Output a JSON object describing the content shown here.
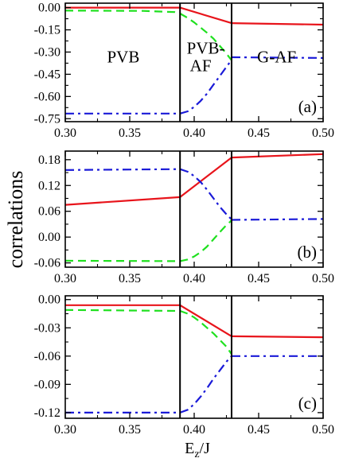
{
  "figure": {
    "ylabel": "correlations",
    "xlabel_main": "E",
    "xlabel_sub": "z",
    "xlabel_tail": "/J"
  },
  "colors": {
    "series_red": "#e8141b",
    "series_green": "#1fe01f",
    "series_blue": "#1a1ad8",
    "axis": "#000000"
  },
  "chart_data": [
    {
      "type": "line",
      "panel_label": "(a)",
      "xlim": [
        0.3,
        0.5
      ],
      "ylim": [
        -0.77,
        0.03
      ],
      "xticks": [
        0.3,
        0.35,
        0.4,
        0.45,
        0.5
      ],
      "xtick_labels": [
        "0.30",
        "0.35",
        "0.40",
        "0.45",
        "0.50"
      ],
      "yticks": [
        0.0,
        -0.15,
        -0.3,
        -0.45,
        -0.6,
        -0.75
      ],
      "ytick_labels": [
        "0.00",
        "-0.15",
        "-0.30",
        "-0.45",
        "-0.60",
        "-0.75"
      ],
      "vlines": [
        0.389,
        0.429
      ],
      "region_labels": [
        {
          "text": "PVB",
          "x": 0.345,
          "y": -0.37
        },
        {
          "text": "PVB-",
          "x": 0.409,
          "y": -0.31
        },
        {
          "text": "AF",
          "x": 0.405,
          "y": -0.43
        },
        {
          "text": "G-AF",
          "x": 0.464,
          "y": -0.37
        }
      ],
      "series": [
        {
          "color_key": "series_red",
          "style": "solid",
          "segments": [
            {
              "x": [
                0.3,
                0.389
              ],
              "y": [
                0.0,
                0.0
              ]
            },
            {
              "x": [
                0.389,
                0.429
              ],
              "y": [
                0.0,
                -0.105
              ]
            },
            {
              "x": [
                0.429,
                0.5
              ],
              "y": [
                -0.105,
                -0.115
              ]
            }
          ]
        },
        {
          "color_key": "series_green",
          "style": "dash",
          "segments": [
            {
              "x": [
                0.3,
                0.36,
                0.385,
                0.389
              ],
              "y": [
                -0.02,
                -0.022,
                -0.03,
                -0.04
              ]
            },
            {
              "x": [
                0.389,
                0.395,
                0.4,
                0.405,
                0.41,
                0.415,
                0.42,
                0.425,
                0.428,
                0.429
              ],
              "y": [
                -0.04,
                -0.07,
                -0.1,
                -0.135,
                -0.17,
                -0.21,
                -0.26,
                -0.31,
                -0.345,
                -0.355
              ]
            }
          ]
        },
        {
          "color_key": "series_blue",
          "style": "dashdot",
          "segments": [
            {
              "x": [
                0.3,
                0.389
              ],
              "y": [
                -0.715,
                -0.715
              ]
            },
            {
              "x": [
                0.389,
                0.395,
                0.4,
                0.405,
                0.41,
                0.415,
                0.42,
                0.425,
                0.428,
                0.429
              ],
              "y": [
                -0.715,
                -0.7,
                -0.67,
                -0.63,
                -0.58,
                -0.52,
                -0.46,
                -0.4,
                -0.365,
                -0.355
              ]
            },
            {
              "x": [
                0.429,
                0.5
              ],
              "y": [
                -0.335,
                -0.34
              ]
            }
          ]
        }
      ]
    },
    {
      "type": "line",
      "panel_label": "(b)",
      "xlim": [
        0.3,
        0.5
      ],
      "ylim": [
        -0.07,
        0.2
      ],
      "xticks": [
        0.3,
        0.35,
        0.4,
        0.45,
        0.5
      ],
      "xtick_labels": [
        "0.30",
        "0.35",
        "0.40",
        "0.45",
        "0.50"
      ],
      "yticks": [
        0.18,
        0.12,
        0.06,
        0.0,
        -0.06
      ],
      "ytick_labels": [
        "0.18",
        "0.12",
        "0.06",
        "0.00",
        "-0.06"
      ],
      "vlines": [
        0.389,
        0.429
      ],
      "series": [
        {
          "color_key": "series_red",
          "style": "solid",
          "segments": [
            {
              "x": [
                0.3,
                0.389
              ],
              "y": [
                0.075,
                0.093
              ]
            },
            {
              "x": [
                0.389,
                0.429
              ],
              "y": [
                0.093,
                0.185
              ]
            },
            {
              "x": [
                0.429,
                0.5
              ],
              "y": [
                0.185,
                0.193
              ]
            }
          ]
        },
        {
          "color_key": "series_green",
          "style": "dash",
          "segments": [
            {
              "x": [
                0.3,
                0.389
              ],
              "y": [
                -0.055,
                -0.056
              ]
            },
            {
              "x": [
                0.389,
                0.395,
                0.4,
                0.405,
                0.41,
                0.415,
                0.42,
                0.425,
                0.428,
                0.429
              ],
              "y": [
                -0.056,
                -0.052,
                -0.045,
                -0.035,
                -0.022,
                -0.005,
                0.012,
                0.028,
                0.036,
                0.04
              ]
            }
          ]
        },
        {
          "color_key": "series_blue",
          "style": "dashdot",
          "segments": [
            {
              "x": [
                0.3,
                0.389
              ],
              "y": [
                0.156,
                0.158
              ]
            },
            {
              "x": [
                0.389,
                0.395,
                0.4,
                0.405,
                0.41,
                0.415,
                0.42,
                0.425,
                0.428,
                0.429
              ],
              "y": [
                0.158,
                0.152,
                0.142,
                0.128,
                0.11,
                0.09,
                0.07,
                0.053,
                0.044,
                0.04
              ]
            },
            {
              "x": [
                0.429,
                0.5
              ],
              "y": [
                0.04,
                0.042
              ]
            }
          ]
        }
      ]
    },
    {
      "type": "line",
      "panel_label": "(c)",
      "xlim": [
        0.3,
        0.5
      ],
      "ylim": [
        -0.126,
        0.004
      ],
      "xticks": [
        0.3,
        0.35,
        0.4,
        0.45,
        0.5
      ],
      "xtick_labels": [
        "0.30",
        "0.35",
        "0.40",
        "0.45",
        "0.50"
      ],
      "yticks": [
        0.0,
        -0.03,
        -0.06,
        -0.09,
        -0.12
      ],
      "ytick_labels": [
        "0.00",
        "-0.03",
        "-0.06",
        "-0.09",
        "-0.12"
      ],
      "vlines": [
        0.389,
        0.429
      ],
      "series": [
        {
          "color_key": "series_red",
          "style": "solid",
          "segments": [
            {
              "x": [
                0.3,
                0.389
              ],
              "y": [
                -0.006,
                -0.006
              ]
            },
            {
              "x": [
                0.389,
                0.429
              ],
              "y": [
                -0.006,
                -0.039
              ]
            },
            {
              "x": [
                0.429,
                0.5
              ],
              "y": [
                -0.039,
                -0.04
              ]
            }
          ]
        },
        {
          "color_key": "series_green",
          "style": "dash",
          "segments": [
            {
              "x": [
                0.3,
                0.389
              ],
              "y": [
                -0.011,
                -0.012
              ]
            },
            {
              "x": [
                0.389,
                0.395,
                0.4,
                0.405,
                0.41,
                0.415,
                0.42,
                0.425,
                0.429
              ],
              "y": [
                -0.012,
                -0.015,
                -0.019,
                -0.024,
                -0.03,
                -0.036,
                -0.043,
                -0.05,
                -0.058
              ]
            }
          ]
        },
        {
          "color_key": "series_blue",
          "style": "dashdot",
          "segments": [
            {
              "x": [
                0.3,
                0.389
              ],
              "y": [
                -0.12,
                -0.12
              ]
            },
            {
              "x": [
                0.389,
                0.395,
                0.4,
                0.405,
                0.41,
                0.415,
                0.42,
                0.425,
                0.429
              ],
              "y": [
                -0.12,
                -0.117,
                -0.111,
                -0.103,
                -0.094,
                -0.084,
                -0.075,
                -0.066,
                -0.06
              ]
            },
            {
              "x": [
                0.429,
                0.5
              ],
              "y": [
                -0.06,
                -0.06
              ]
            }
          ]
        }
      ]
    }
  ]
}
